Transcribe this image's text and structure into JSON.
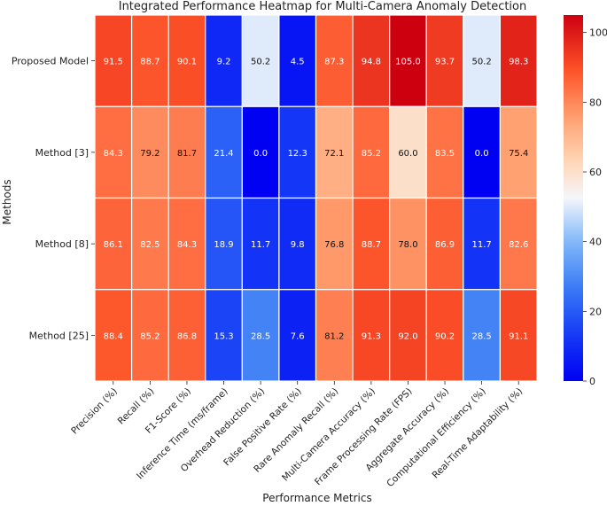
{
  "chart_data": {
    "type": "heatmap",
    "title": "Integrated Performance Heatmap for Multi-Camera Anomaly Detection",
    "xlabel": "Performance Metrics",
    "ylabel": "Methods",
    "rows": [
      "Proposed Model",
      "Method [3]",
      "Method [8]",
      "Method [25]"
    ],
    "columns": [
      "Precision (%)",
      "Recall (%)",
      "F1-Score (%)",
      "Inference Time (ms/frame)",
      "Overhead Reduction (%)",
      "False Positive Rate (%)",
      "Rare Anomaly Recall (%)",
      "Multi-Camera Accuracy (%)",
      "Frame Processing Rate (FPS)",
      "Aggregate Accuracy (%)",
      "Computational Efficiency (%)",
      "Real-Time Adaptability (%)"
    ],
    "values": [
      [
        91.5,
        88.7,
        90.1,
        9.2,
        50.2,
        4.5,
        87.3,
        94.8,
        105.0,
        93.7,
        50.2,
        98.3
      ],
      [
        84.3,
        79.2,
        81.7,
        21.4,
        0.0,
        12.3,
        72.1,
        85.2,
        60.0,
        83.5,
        0.0,
        75.4
      ],
      [
        86.1,
        82.5,
        84.3,
        18.9,
        11.7,
        9.8,
        76.8,
        88.7,
        78.0,
        86.9,
        11.7,
        82.6
      ],
      [
        88.4,
        85.2,
        86.8,
        15.3,
        28.5,
        7.6,
        81.2,
        91.3,
        92.0,
        90.2,
        28.5,
        91.1
      ]
    ],
    "colormap": "coolwarm-bwr",
    "vmin": 0,
    "vmax": 105,
    "colorbar_ticks": [
      0,
      20,
      40,
      60,
      80,
      100
    ],
    "annotations": true,
    "grid_lines": "white"
  }
}
